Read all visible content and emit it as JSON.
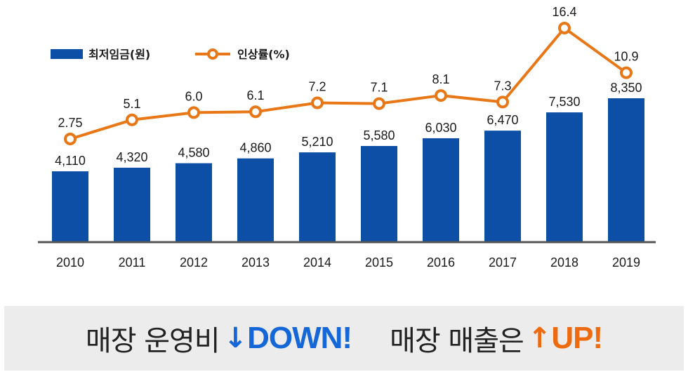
{
  "chart_data": {
    "type": "bar",
    "categories": [
      "2010",
      "2011",
      "2012",
      "2013",
      "2014",
      "2015",
      "2016",
      "2017",
      "2018",
      "2019"
    ],
    "series": [
      {
        "name": "최저임금(원)",
        "kind": "bar",
        "color": "#0d4ea6",
        "values": [
          4110,
          4320,
          4580,
          4860,
          5210,
          5580,
          6030,
          6470,
          7530,
          8350
        ],
        "labels": [
          "4,110",
          "4,320",
          "4,580",
          "4,860",
          "5,210",
          "5,580",
          "6,030",
          "6,470",
          "7,530",
          "8,350"
        ]
      },
      {
        "name": "인상률(%)",
        "kind": "line",
        "color": "#e87817",
        "values": [
          2.75,
          5.1,
          6.0,
          6.1,
          7.2,
          7.1,
          8.1,
          7.3,
          16.4,
          10.9
        ],
        "labels": [
          "2.75",
          "5.1",
          "6.0",
          "6.1",
          "7.2",
          "7.1",
          "8.1",
          "7.3",
          "16.4",
          "10.9"
        ]
      }
    ],
    "legend_position": "top-left",
    "grid": false
  },
  "banner": {
    "left_text": "매장 운영비",
    "left_arrow": "↓",
    "left_tag": "DOWN!",
    "right_text": "매장 매출은",
    "right_arrow": "↑",
    "right_tag": "UP!",
    "down_color": "#1566d6",
    "up_color": "#ee6a0f"
  }
}
